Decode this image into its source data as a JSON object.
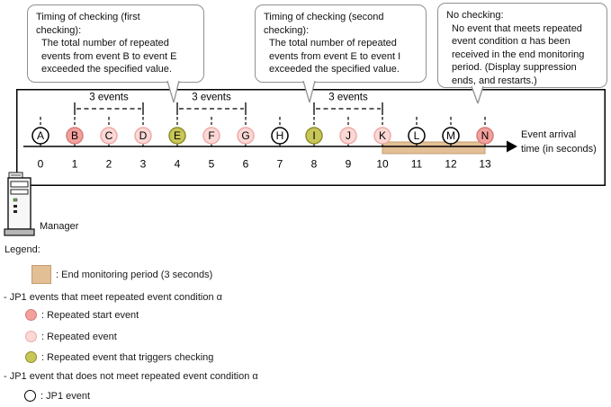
{
  "callouts": [
    {
      "title": "Timing of checking (first\nchecking):",
      "body": "The total number of repeated\nevents from event B to event E\nexceeded the specified value."
    },
    {
      "title": "Timing of checking (second\nchecking):",
      "body": "The total number of repeated\nevents from event E to event I\nexceeded the specified value."
    },
    {
      "title": "No checking:",
      "body": "No event that meets repeated\nevent condition α has been\nreceived in the end monitoring\nperiod. (Display suppression\nends, and restarts.)"
    }
  ],
  "timeline": {
    "axis_label": "Event arrival\ntime (in seconds)",
    "events": [
      {
        "label": "A",
        "time": 0,
        "type": "jp1"
      },
      {
        "label": "B",
        "time": 1,
        "type": "start"
      },
      {
        "label": "C",
        "time": 2,
        "type": "repeated"
      },
      {
        "label": "D",
        "time": 3,
        "type": "repeated"
      },
      {
        "label": "E",
        "time": 4,
        "type": "trigger"
      },
      {
        "label": "F",
        "time": 5,
        "type": "repeated"
      },
      {
        "label": "G",
        "time": 6,
        "type": "repeated"
      },
      {
        "label": "H",
        "time": 7,
        "type": "jp1"
      },
      {
        "label": "I",
        "time": 8,
        "type": "trigger"
      },
      {
        "label": "J",
        "time": 9,
        "type": "repeated"
      },
      {
        "label": "K",
        "time": 10,
        "type": "repeated"
      },
      {
        "label": "L",
        "time": 11,
        "type": "jp1"
      },
      {
        "label": "M",
        "time": 12,
        "type": "jp1"
      },
      {
        "label": "N",
        "time": 13,
        "type": "start"
      }
    ],
    "brackets": [
      {
        "label": "3 events",
        "from": 1,
        "to": 3
      },
      {
        "label": "3 events",
        "from": 4,
        "to": 6
      },
      {
        "label": "3 events",
        "from": 8,
        "to": 10
      }
    ],
    "end_monitoring_bar": {
      "from": 10,
      "to": 13
    }
  },
  "manager_label": "Manager",
  "legend": {
    "title": "Legend:",
    "end_monitoring_label": ": End monitoring period (3 seconds)",
    "meet_heading": "- JP1 events that meet repeated event condition α",
    "meet_items": [
      {
        "type": "start",
        "label": ": Repeated start event"
      },
      {
        "type": "repeated",
        "label": ": Repeated event"
      },
      {
        "type": "trigger",
        "label": ": Repeated event that triggers checking"
      }
    ],
    "not_meet_heading": "- JP1 event that does not meet repeated event condition α",
    "not_meet_items": [
      {
        "type": "jp1",
        "label": ": JP1 event"
      }
    ]
  },
  "colors": {
    "start_fill": "#f4a09d",
    "start_border": "#d57d7a",
    "repeated_fill": "#fbd8d5",
    "repeated_border": "#eeaaa6",
    "trigger_fill": "#c8c658",
    "trigger_border": "#8f8d2c",
    "jp1_fill": "#ffffff",
    "jp1_border": "#000000",
    "bar_fill": "#e3bf96",
    "bar_border": "#c69b6e"
  }
}
